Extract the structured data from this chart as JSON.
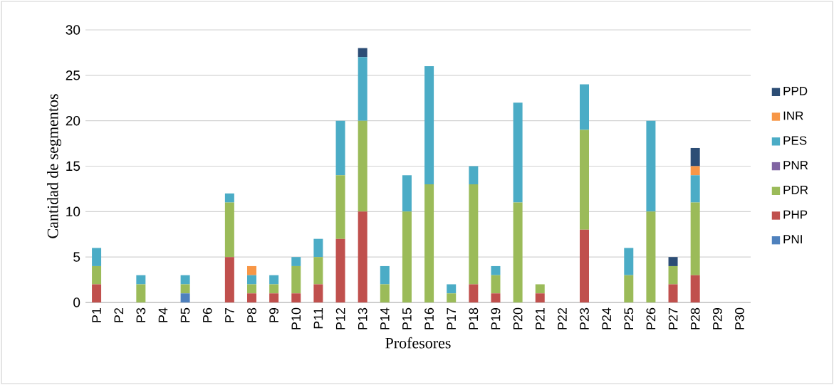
{
  "chart_data": {
    "type": "bar",
    "stacked": true,
    "xlabel": "Profesores",
    "ylabel": "Cantidad de segmentos",
    "categories": [
      "P1",
      "P2",
      "P3",
      "P4",
      "P5",
      "P6",
      "P7",
      "P8",
      "P9",
      "P10",
      "P11",
      "P12",
      "P13",
      "P14",
      "P15",
      "P16",
      "P17",
      "P18",
      "P19",
      "P20",
      "P21",
      "P22",
      "P23",
      "P24",
      "P25",
      "P26",
      "P27",
      "P28",
      "P29",
      "P30"
    ],
    "series": [
      {
        "name": "PNI",
        "color": "#4f81bd",
        "values": [
          0,
          0,
          0,
          0,
          1,
          0,
          0,
          0,
          0,
          0,
          0,
          0,
          0,
          0,
          0,
          0,
          0,
          0,
          0,
          0,
          0,
          0,
          0,
          0,
          0,
          0,
          0,
          0,
          0,
          0
        ]
      },
      {
        "name": "PHP",
        "color": "#c0504d",
        "values": [
          2,
          0,
          0,
          0,
          0,
          0,
          5,
          1,
          1,
          1,
          2,
          7,
          10,
          0,
          0,
          0,
          0,
          2,
          1,
          0,
          1,
          0,
          8,
          0,
          0,
          0,
          2,
          3,
          0,
          0
        ]
      },
      {
        "name": "PDR",
        "color": "#9bbb59",
        "values": [
          2,
          0,
          2,
          0,
          1,
          0,
          6,
          1,
          1,
          3,
          3,
          7,
          10,
          2,
          10,
          13,
          1,
          11,
          2,
          11,
          1,
          0,
          11,
          0,
          3,
          10,
          2,
          8,
          0,
          0
        ]
      },
      {
        "name": "PNR",
        "color": "#8064a2",
        "values": [
          0,
          0,
          0,
          0,
          0,
          0,
          0,
          0,
          0,
          0,
          0,
          0,
          0,
          0,
          0,
          0,
          0,
          0,
          0,
          0,
          0,
          0,
          0,
          0,
          0,
          0,
          0,
          0,
          0,
          0
        ]
      },
      {
        "name": "PES",
        "color": "#4bacc6",
        "values": [
          2,
          0,
          1,
          0,
          1,
          0,
          1,
          1,
          1,
          1,
          2,
          6,
          7,
          2,
          4,
          13,
          1,
          2,
          1,
          11,
          0,
          0,
          5,
          0,
          3,
          10,
          0,
          3,
          0,
          0
        ]
      },
      {
        "name": "INR",
        "color": "#f79646",
        "values": [
          0,
          0,
          0,
          0,
          0,
          0,
          0,
          1,
          0,
          0,
          0,
          0,
          0,
          0,
          0,
          0,
          0,
          0,
          0,
          0,
          0,
          0,
          0,
          0,
          0,
          0,
          0,
          1,
          0,
          0
        ]
      },
      {
        "name": "PPD",
        "color": "#2c4d75",
        "values": [
          0,
          0,
          0,
          0,
          0,
          0,
          0,
          0,
          0,
          0,
          0,
          0,
          1,
          0,
          0,
          0,
          0,
          0,
          0,
          0,
          0,
          0,
          0,
          0,
          0,
          0,
          1,
          2,
          0,
          0
        ]
      }
    ],
    "ylim": [
      0,
      30
    ],
    "yticks": [
      0,
      5,
      10,
      15,
      20,
      25,
      30
    ],
    "grid": "y",
    "legend": "right"
  }
}
